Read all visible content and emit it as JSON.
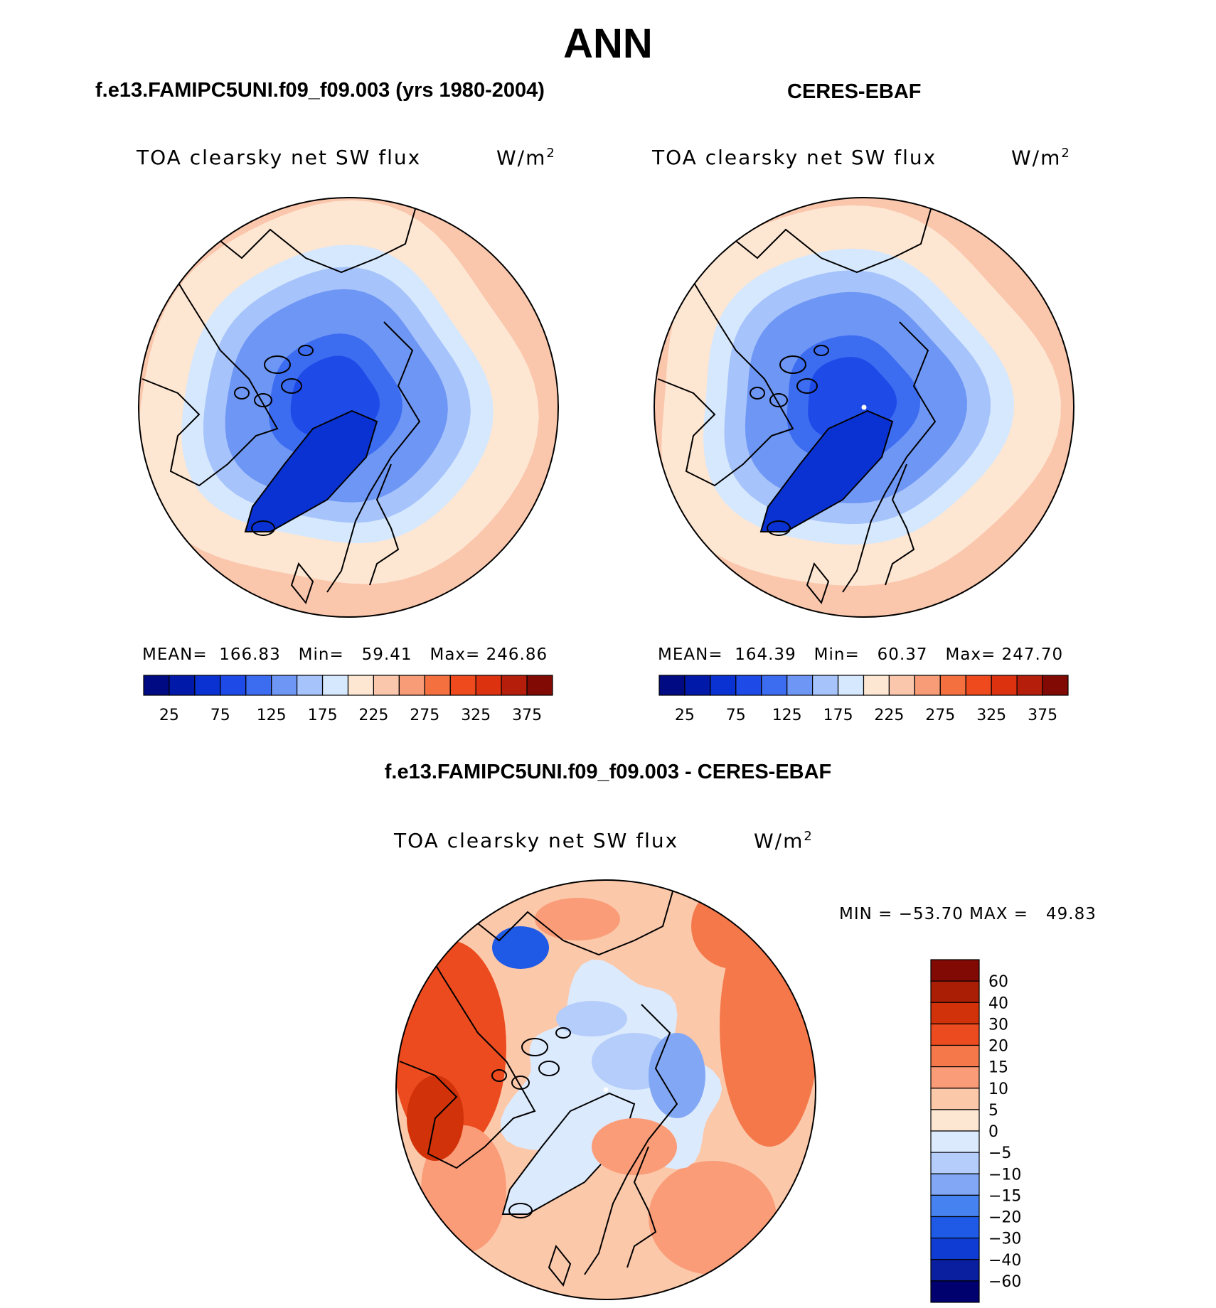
{
  "figure": {
    "title": "ANN"
  },
  "panels": [
    {
      "case_title": "f.e13.FAMIPC5UNI.f09_f09.003 (yrs 1980-2004)",
      "variable": "TOA clearsky net SW flux",
      "units": "W/m",
      "units_sup": "2",
      "mean_label": "MEAN=",
      "mean": "166.83",
      "min_label": "Min=",
      "min": "59.41",
      "max_label": "Max=",
      "max": "246.86"
    },
    {
      "case_title": "CERES-EBAF",
      "variable": "TOA clearsky net SW flux",
      "units": "W/m",
      "units_sup": "2",
      "mean_label": "MEAN=",
      "mean": "164.39",
      "min_label": "Min=",
      "min": "60.37",
      "max_label": "Max=",
      "max": "247.70"
    },
    {
      "case_title": "f.e13.FAMIPC5UNI.f09_f09.003 - CERES-EBAF",
      "variable": "TOA clearsky net SW flux",
      "units": "W/m",
      "units_sup": "2",
      "minmax_label": "MIN = −53.70 MAX =   49.83"
    }
  ],
  "chart_data": [
    {
      "type": "heatmap",
      "projection": "north polar stereographic",
      "title": "f.e13.FAMIPC5UNI.f09_f09.003 (yrs 1980-2004)",
      "variable": "TOA clearsky net SW flux",
      "units": "W/m2",
      "stats": {
        "mean": 166.83,
        "min": 59.41,
        "max": 246.86
      },
      "field_center_value": 60,
      "field_edge_value": 245,
      "colorbar": {
        "orientation": "horizontal",
        "levels": [
          25,
          50,
          75,
          100,
          125,
          150,
          175,
          200,
          225,
          250,
          275,
          300,
          325,
          350,
          375
        ],
        "tick_labels": [
          "25",
          "75",
          "125",
          "175",
          "225",
          "275",
          "325",
          "375"
        ],
        "colors": [
          "#000a82",
          "#0019a8",
          "#0a32d2",
          "#1e4be8",
          "#3c6cf0",
          "#6e96f5",
          "#a6c3fb",
          "#d6e8fd",
          "#fde6d2",
          "#fac6ac",
          "#f79c76",
          "#f5703f",
          "#ee4a1e",
          "#dc320f",
          "#b41e0a",
          "#820a05"
        ]
      }
    },
    {
      "type": "heatmap",
      "projection": "north polar stereographic",
      "title": "CERES-EBAF",
      "variable": "TOA clearsky net SW flux",
      "units": "W/m2",
      "stats": {
        "mean": 164.39,
        "min": 60.37,
        "max": 247.7
      },
      "field_center_value": 62,
      "field_edge_value": 245,
      "colorbar": {
        "orientation": "horizontal",
        "levels": [
          25,
          50,
          75,
          100,
          125,
          150,
          175,
          200,
          225,
          250,
          275,
          300,
          325,
          350,
          375
        ],
        "tick_labels": [
          "25",
          "75",
          "125",
          "175",
          "225",
          "275",
          "325",
          "375"
        ],
        "colors": [
          "#000a82",
          "#0019a8",
          "#0a32d2",
          "#1e4be8",
          "#3c6cf0",
          "#6e96f5",
          "#a6c3fb",
          "#d6e8fd",
          "#fde6d2",
          "#fac6ac",
          "#f79c76",
          "#f5703f",
          "#ee4a1e",
          "#dc320f",
          "#b41e0a",
          "#820a05"
        ]
      }
    },
    {
      "type": "heatmap",
      "projection": "north polar stereographic",
      "title": "f.e13.FAMIPC5UNI.f09_f09.003 - CERES-EBAF",
      "variable": "TOA clearsky net SW flux",
      "units": "W/m2",
      "stats": {
        "min": -53.7,
        "max": 49.83
      },
      "colorbar": {
        "orientation": "vertical",
        "levels": [
          -60,
          -40,
          -30,
          -20,
          -15,
          -10,
          -5,
          0,
          5,
          10,
          15,
          20,
          30,
          40,
          60
        ],
        "tick_labels": [
          "60",
          "40",
          "30",
          "20",
          "15",
          "10",
          "5",
          "0",
          "−5",
          "−10",
          "−15",
          "−20",
          "−30",
          "−40",
          "−60"
        ],
        "colors": [
          "#00006e",
          "#0a1ea0",
          "#0f3cd2",
          "#1e5ae6",
          "#4682f0",
          "#82a8f5",
          "#b4cdfa",
          "#dceafd",
          "#fde6d2",
          "#fcc8aa",
          "#fa9c78",
          "#f5784b",
          "#eb4b1e",
          "#d2320a",
          "#aa1e05",
          "#820a05"
        ]
      }
    }
  ]
}
